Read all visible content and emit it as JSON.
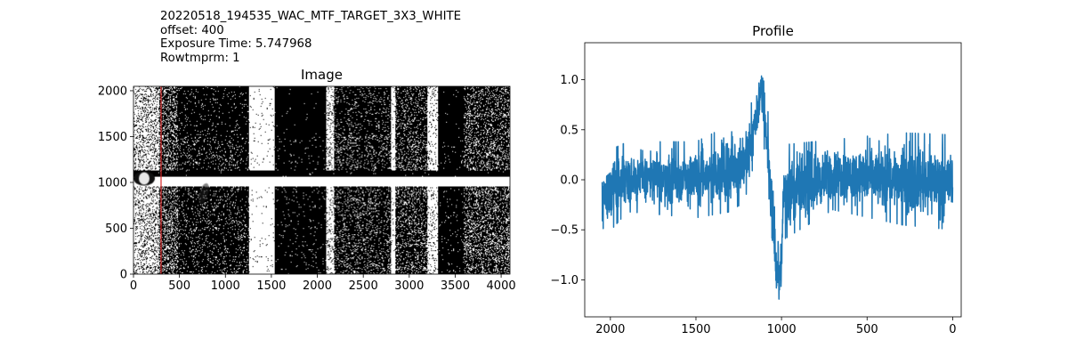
{
  "header": {
    "filename": "20220518_194535_WAC_MTF_TARGET_3X3_WHITE",
    "offset": "offset: 400",
    "exposure": "Exposure Time: 5.747968",
    "rowtmprm": "Rowtmprm: 1"
  },
  "chart_data": [
    {
      "type": "heatmap",
      "title": "Image",
      "xlabel": "",
      "ylabel": "",
      "xlim": [
        0,
        4096
      ],
      "ylim": [
        0,
        2048
      ],
      "xticks": [
        0,
        500,
        1000,
        1500,
        2000,
        2500,
        3000,
        3500,
        4000
      ],
      "yticks": [
        0,
        500,
        1000,
        1500,
        2000
      ],
      "colormap": "gray",
      "marker_line": {
        "x": 300,
        "color": "#d62728"
      }
    },
    {
      "type": "line",
      "title": "Profile",
      "xlabel": "",
      "ylabel": "",
      "xlim": [
        2150,
        -50
      ],
      "ylim": [
        -1.37,
        1.37
      ],
      "xticks": [
        2000,
        1500,
        1000,
        500,
        0
      ],
      "yticks": [
        -1.0,
        -0.5,
        0.0,
        0.5,
        1.0
      ],
      "series": [
        {
          "color": "#1f77b4",
          "x_range": [
            2048,
            0
          ],
          "envelope": [
            {
              "x": 2048,
              "lo": -0.6,
              "hi": 0.26
            },
            {
              "x": 1900,
              "lo": -0.32,
              "hi": 0.38
            },
            {
              "x": 1500,
              "lo": -0.38,
              "hi": 0.38
            },
            {
              "x": 1300,
              "lo": -0.32,
              "hi": 0.55
            },
            {
              "x": 1200,
              "lo": -0.2,
              "hi": 0.6
            },
            {
              "x": 1150,
              "lo": 0.3,
              "hi": 0.95
            },
            {
              "x": 1125,
              "lo": 0.5,
              "hi": 1.25
            },
            {
              "x": 1100,
              "lo": 0.3,
              "hi": 1.1
            },
            {
              "x": 1075,
              "lo": -0.3,
              "hi": 0.6
            },
            {
              "x": 1050,
              "lo": -0.8,
              "hi": 0.0
            },
            {
              "x": 1030,
              "lo": -1.25,
              "hi": -0.6
            },
            {
              "x": 1000,
              "lo": -1.2,
              "hi": -0.65
            },
            {
              "x": 990,
              "lo": -0.6,
              "hi": 0.35
            },
            {
              "x": 700,
              "lo": -0.3,
              "hi": 0.4
            },
            {
              "x": 300,
              "lo": -0.45,
              "hi": 0.47
            },
            {
              "x": 0,
              "lo": -0.5,
              "hi": 0.45
            }
          ]
        }
      ]
    }
  ]
}
